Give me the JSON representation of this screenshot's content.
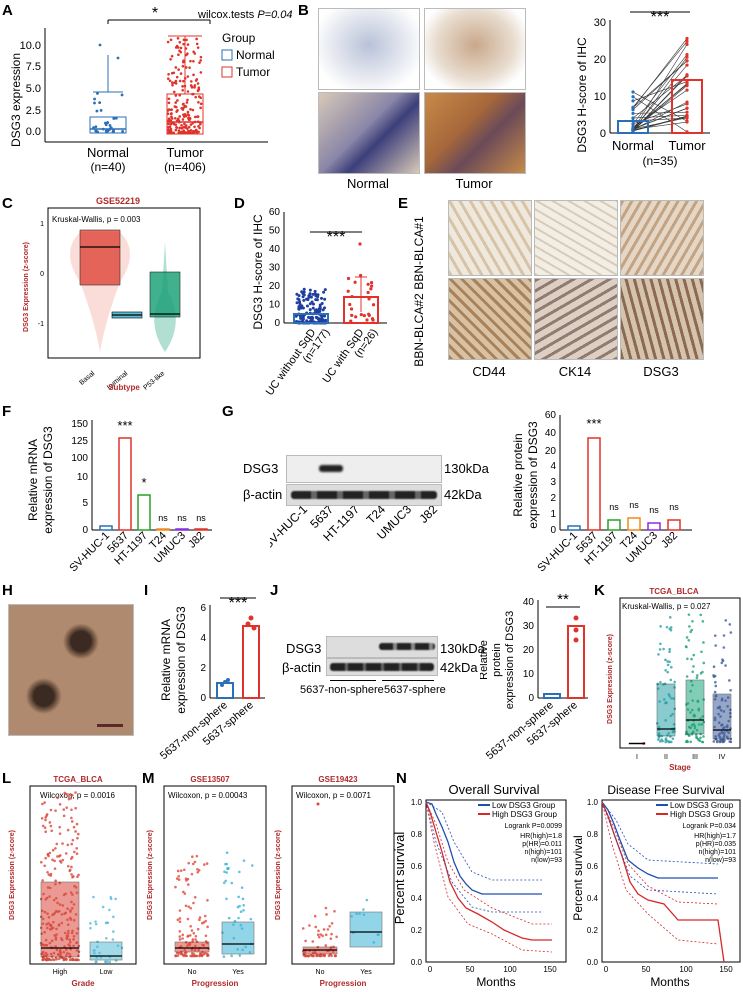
{
  "panel_letters": [
    "A",
    "B",
    "C",
    "D",
    "E",
    "F",
    "G",
    "H",
    "I",
    "J",
    "K",
    "L",
    "M",
    "N"
  ],
  "colors": {
    "normal": "#2b6fb6",
    "tumor": "#e0332b",
    "basal": "#e0473a",
    "luminal": "#5bbcd6",
    "p53like": "#1fa37a",
    "green": "#2aa02a",
    "orange": "#f08a1c",
    "purple": "#8a2be2",
    "grade_high": "#d9473b",
    "grade_low": "#55bcd8",
    "surv_low": "#1f4fb0",
    "surv_high": "#d62828",
    "title_red": "#b02a2a"
  },
  "A": {
    "ylabel": "DSG3 expression",
    "sig": "*",
    "test": "wilcox.tests",
    "pval": "P=0.04",
    "legend_title": "Group",
    "legend": [
      "Normal",
      "Tumor"
    ],
    "xticks": [
      "Normal",
      "Tumor"
    ],
    "ns": [
      "(n=40)",
      "(n=406)"
    ],
    "yticks": [
      "0.0",
      "2.5",
      "5.0",
      "7.5",
      "10.0"
    ]
  },
  "B": {
    "ylabel": "DSG3 H-score of IHC",
    "sig": "***",
    "xticks": [
      "Normal",
      "Tumor"
    ],
    "n": "(n=35)",
    "img_labels": [
      "Normal",
      "Tumor"
    ],
    "yticks": [
      "0",
      "10",
      "20",
      "30"
    ]
  },
  "C": {
    "title": "GSE52219",
    "test": "Kruskal-Wallis, p = 0.003",
    "ylabel": "DSG3 Expression (z-score)",
    "xlabel": "Subtype",
    "xticks": [
      "Basal",
      "Luminal",
      "P53-like"
    ],
    "yticks": [
      "-1",
      "0",
      "1"
    ]
  },
  "D": {
    "ylabel": "DSG3 H-score of IHC",
    "sig": "***",
    "xticks": [
      "UC without SqD",
      "UC with SqD"
    ],
    "ns": [
      "(n=177)",
      "(n=26)"
    ],
    "yticks": [
      "0",
      "10",
      "20",
      "30",
      "40",
      "50",
      "60"
    ]
  },
  "E": {
    "rows": [
      "BBN-BLCA#1",
      "BBN-BLCA#2"
    ],
    "cols": [
      "CD44",
      "CK14",
      "DSG3"
    ]
  },
  "F": {
    "ylabel": [
      "Relative mRNA",
      "expression of DSG3"
    ],
    "cats": [
      "SV-HUC-1",
      "5637",
      "HT-1197",
      "T24",
      "UMUC3",
      "J82"
    ],
    "sigs": [
      "***",
      "*",
      "ns",
      "ns",
      "ns"
    ],
    "yticks": [
      "0",
      "5",
      "10",
      "100",
      "125",
      "150"
    ]
  },
  "G": {
    "rows": [
      "DSG3",
      "β-actin"
    ],
    "sizes": [
      "130kDa",
      "42kDa"
    ],
    "cats": [
      "SV-HUC-1",
      "5637",
      "HT-1197",
      "T24",
      "UMUC3",
      "J82"
    ],
    "ylabel": [
      "Relative protein",
      "expression of DSG3"
    ],
    "sigs": [
      "***",
      "ns",
      "ns",
      "ns",
      "ns"
    ],
    "yticks": [
      "0",
      "1",
      "2",
      "3",
      "4",
      "20",
      "40",
      "60"
    ]
  },
  "I": {
    "ylabel": [
      "Relative mRNA",
      "expression of DSG3"
    ],
    "cats": [
      "5637-non-sphere",
      "5637-sphere"
    ],
    "sig": "***",
    "yticks": [
      "0",
      "2",
      "4",
      "6"
    ]
  },
  "J": {
    "rows": [
      "DSG3",
      "β-actin"
    ],
    "sizes": [
      "130kDa",
      "42kDa"
    ],
    "groups": [
      "5637-non-sphere",
      "5637-sphere"
    ],
    "ylabel": [
      "Relative",
      "protein",
      "expression of DSG3"
    ],
    "cats": [
      "5637-non-sphere",
      "5637-sphere"
    ],
    "sig": "**",
    "yticks": [
      "0",
      "10",
      "20",
      "30",
      "40"
    ]
  },
  "K": {
    "title": "TCGA_BLCA",
    "test": "Kruskal-Wallis, p = 0.027",
    "ylabel": "DSG3 Expression (z-score)",
    "xlabel": "Stage",
    "xticks": [
      "I",
      "II",
      "III",
      "IV"
    ]
  },
  "L": {
    "title": "TCGA_BLCA",
    "test": "Wilcoxon, p = 0.0016",
    "ylabel": "DSG3 Expression (z-score)",
    "xlabel": "Grade",
    "xticks": [
      "High",
      "Low"
    ]
  },
  "M": {
    "plots": [
      {
        "title": "GSE13507",
        "test": "Wilcoxon, p = 0.00043"
      },
      {
        "title": "GSE19423",
        "test": "Wilcoxon, p = 0.0071"
      }
    ],
    "ylabel": "DSG3 Expression (z-score)",
    "xlabel": "Progression",
    "xticks": [
      "No",
      "Yes"
    ]
  },
  "N": {
    "plots": [
      {
        "title": "Overall Survival",
        "legend": [
          "Low DSG3 Group",
          "High DSG3 Group"
        ],
        "stats": [
          "Logrank P=0.0099",
          "HR(high)=1.8",
          "p(HR)=0.011",
          "n(high)=101",
          "n(low)=93"
        ],
        "xticks": [
          "0",
          "50",
          "100",
          "150"
        ]
      },
      {
        "title": "Disease Free Survival",
        "legend": [
          "Low DSG3 Group",
          "High DSG3 Group"
        ],
        "stats": [
          "Logrank P=0.034",
          "HR(high)=1.7",
          "p(HR)=0.035",
          "n(high)=101",
          "n(low)=93"
        ],
        "xticks": [
          "0",
          "50",
          "100",
          "150"
        ]
      }
    ],
    "ylabel": "Percent survival",
    "xlabel": "Months",
    "yticks": [
      "0.0",
      "0.2",
      "0.4",
      "0.6",
      "0.8",
      "1.0"
    ]
  },
  "chart_data": [
    {
      "panel": "A",
      "type": "box",
      "categories": [
        "Normal",
        "Tumor"
      ],
      "medians": [
        0.4,
        1.3
      ],
      "q1": [
        0.1,
        0.1
      ],
      "q3": [
        1.5,
        4.3
      ],
      "whisker_high": [
        4.5,
        10.5
      ],
      "ylim": [
        -0.5,
        12
      ]
    },
    {
      "panel": "B",
      "type": "bar",
      "categories": [
        "Normal",
        "Tumor"
      ],
      "values": [
        2,
        14.5
      ],
      "ylim": [
        0,
        30
      ]
    },
    {
      "panel": "C",
      "type": "box",
      "categories": [
        "Basal",
        "Luminal",
        "P53-like"
      ],
      "medians": [
        1.0,
        -0.85,
        -0.8
      ],
      "q1": [
        0.6,
        -0.88,
        -0.9
      ],
      "q3": [
        1.25,
        -0.8,
        0.05
      ]
    },
    {
      "panel": "D",
      "type": "bar",
      "categories": [
        "UC without SqD",
        "UC with SqD"
      ],
      "values": [
        5,
        13.5
      ],
      "ylim": [
        0,
        60
      ]
    },
    {
      "panel": "F",
      "type": "bar",
      "categories": [
        "SV-HUC-1",
        "5637",
        "HT-1197",
        "T24",
        "UMUC3",
        "J82"
      ],
      "values": [
        1,
        130,
        5,
        0.2,
        0.2,
        0.2
      ]
    },
    {
      "panel": "G",
      "type": "bar",
      "categories": [
        "SV-HUC-1",
        "5637",
        "HT-1197",
        "T24",
        "UMUC3",
        "J82"
      ],
      "values": [
        1,
        35,
        1.3,
        1.5,
        1.2,
        1.6
      ]
    },
    {
      "panel": "I",
      "type": "bar",
      "categories": [
        "5637-non-sphere",
        "5637-sphere"
      ],
      "values": [
        1,
        4.8
      ],
      "ylim": [
        0,
        6
      ]
    },
    {
      "panel": "J",
      "type": "bar",
      "categories": [
        "5637-non-sphere",
        "5637-sphere"
      ],
      "values": [
        1,
        30
      ],
      "ylim": [
        0,
        40
      ]
    },
    {
      "panel": "K",
      "type": "box",
      "categories": [
        "I",
        "II",
        "III",
        "IV"
      ],
      "medians": [
        -0.8,
        -0.3,
        -0.2,
        -0.6
      ]
    },
    {
      "panel": "L",
      "type": "box",
      "categories": [
        "High",
        "Low"
      ],
      "medians": [
        -0.5,
        -0.7
      ]
    },
    {
      "panel": "M1",
      "type": "box",
      "categories": [
        "No",
        "Yes"
      ],
      "medians": [
        -0.4,
        -0.2
      ]
    },
    {
      "panel": "M2",
      "type": "box",
      "categories": [
        "No",
        "Yes"
      ],
      "medians": [
        -0.3,
        0
      ]
    }
  ]
}
